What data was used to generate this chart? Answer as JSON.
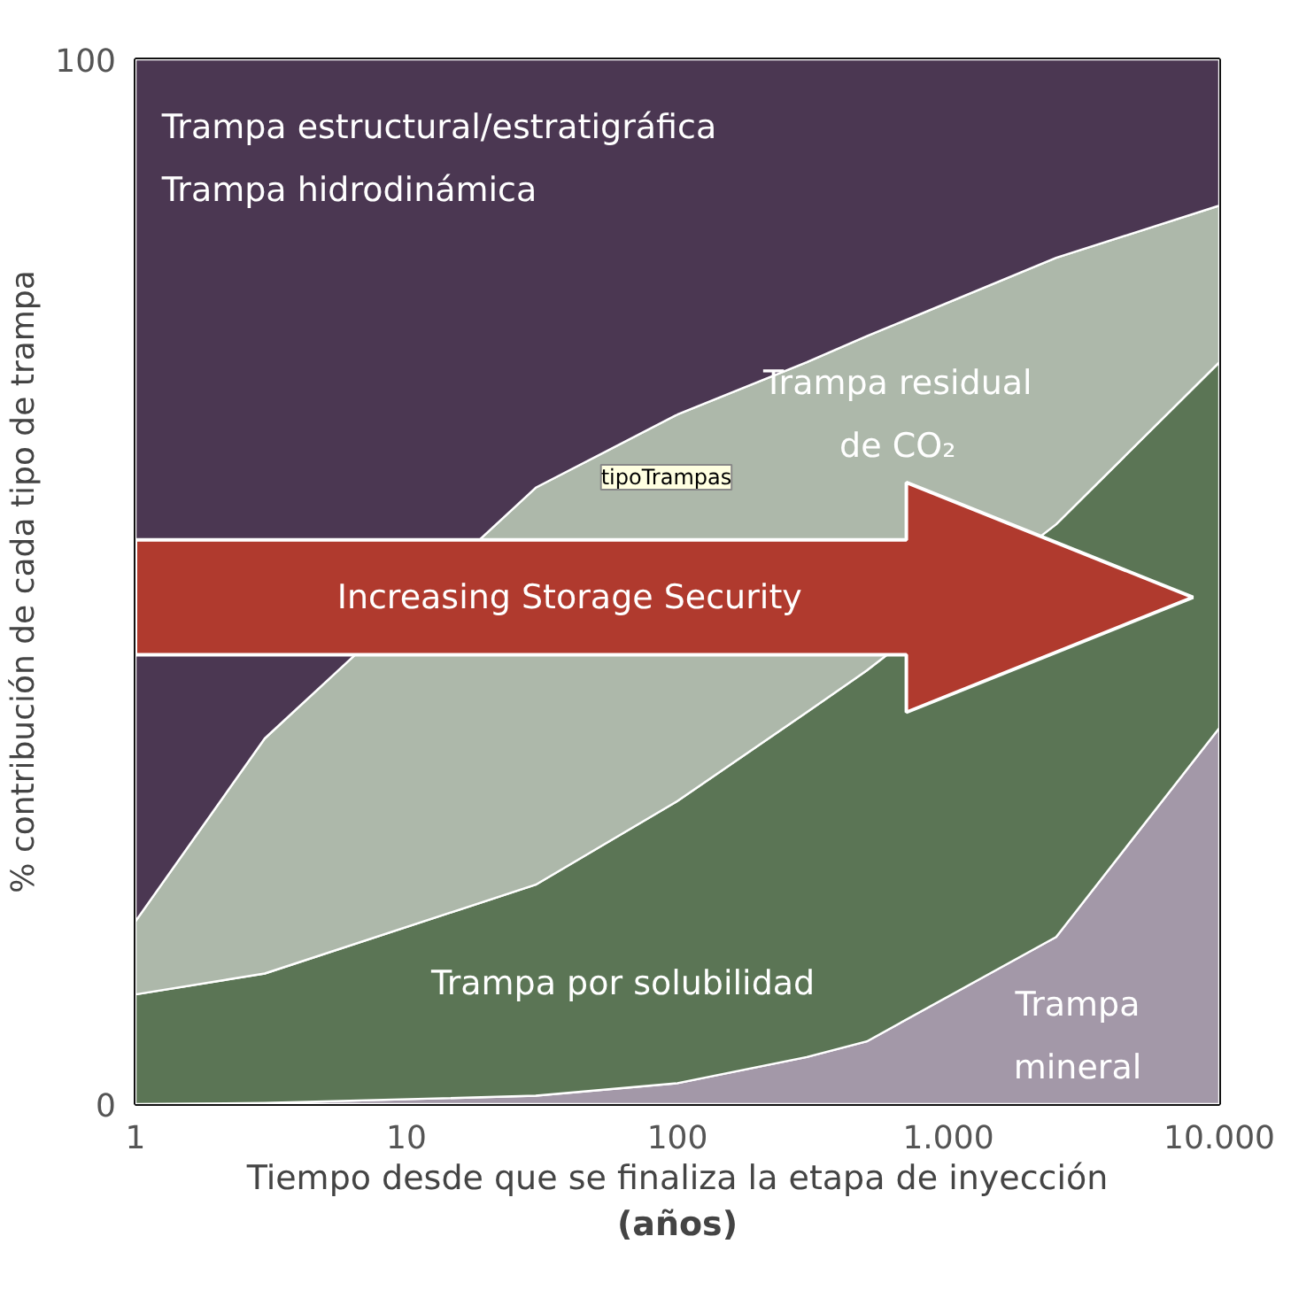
{
  "chart_data": {
    "type": "area",
    "stacked": true,
    "xlabel": "Tiempo desde que se finaliza la etapa de inyección\n(años)",
    "ylabel": "% contribución de cada tipo de trampa",
    "x": [
      1,
      3,
      30,
      100,
      300,
      500,
      2500,
      10000
    ],
    "log": "x",
    "xlim": [
      1,
      10000
    ],
    "xticks": [
      1,
      10,
      100,
      {
        "value": 1000,
        "label": "1.000"
      },
      {
        "value": 10000,
        "label": "10.000"
      }
    ],
    "ylim": [
      0,
      100
    ],
    "yticks": [
      0,
      100
    ],
    "series": [
      {
        "name": "Trampa mineral",
        "color": "#a398a8",
        "values": [
          0,
          0.1,
          0.8,
          2,
          4.5,
          6,
          16,
          36
        ]
      },
      {
        "name": "Trampa por solubilidad",
        "color": "#5b7555",
        "values": [
          10.5,
          12.4,
          20.2,
          27,
          33,
          35.5,
          39.5,
          35
        ]
      },
      {
        "name": "Trampa residual\nde CO₂",
        "color": "#adb8aa",
        "values": [
          7,
          22.5,
          38,
          37,
          33.5,
          32,
          25.5,
          15
        ]
      },
      {
        "name": "Trampa estructural/estratigráfica\nTrampa hidrodinámica",
        "color": "#4b3752",
        "values": [
          82.5,
          65,
          41,
          34,
          29,
          26.5,
          19,
          14
        ]
      }
    ],
    "annotations": [
      "Increasing Storage Security",
      "tipoTrampas"
    ]
  }
}
